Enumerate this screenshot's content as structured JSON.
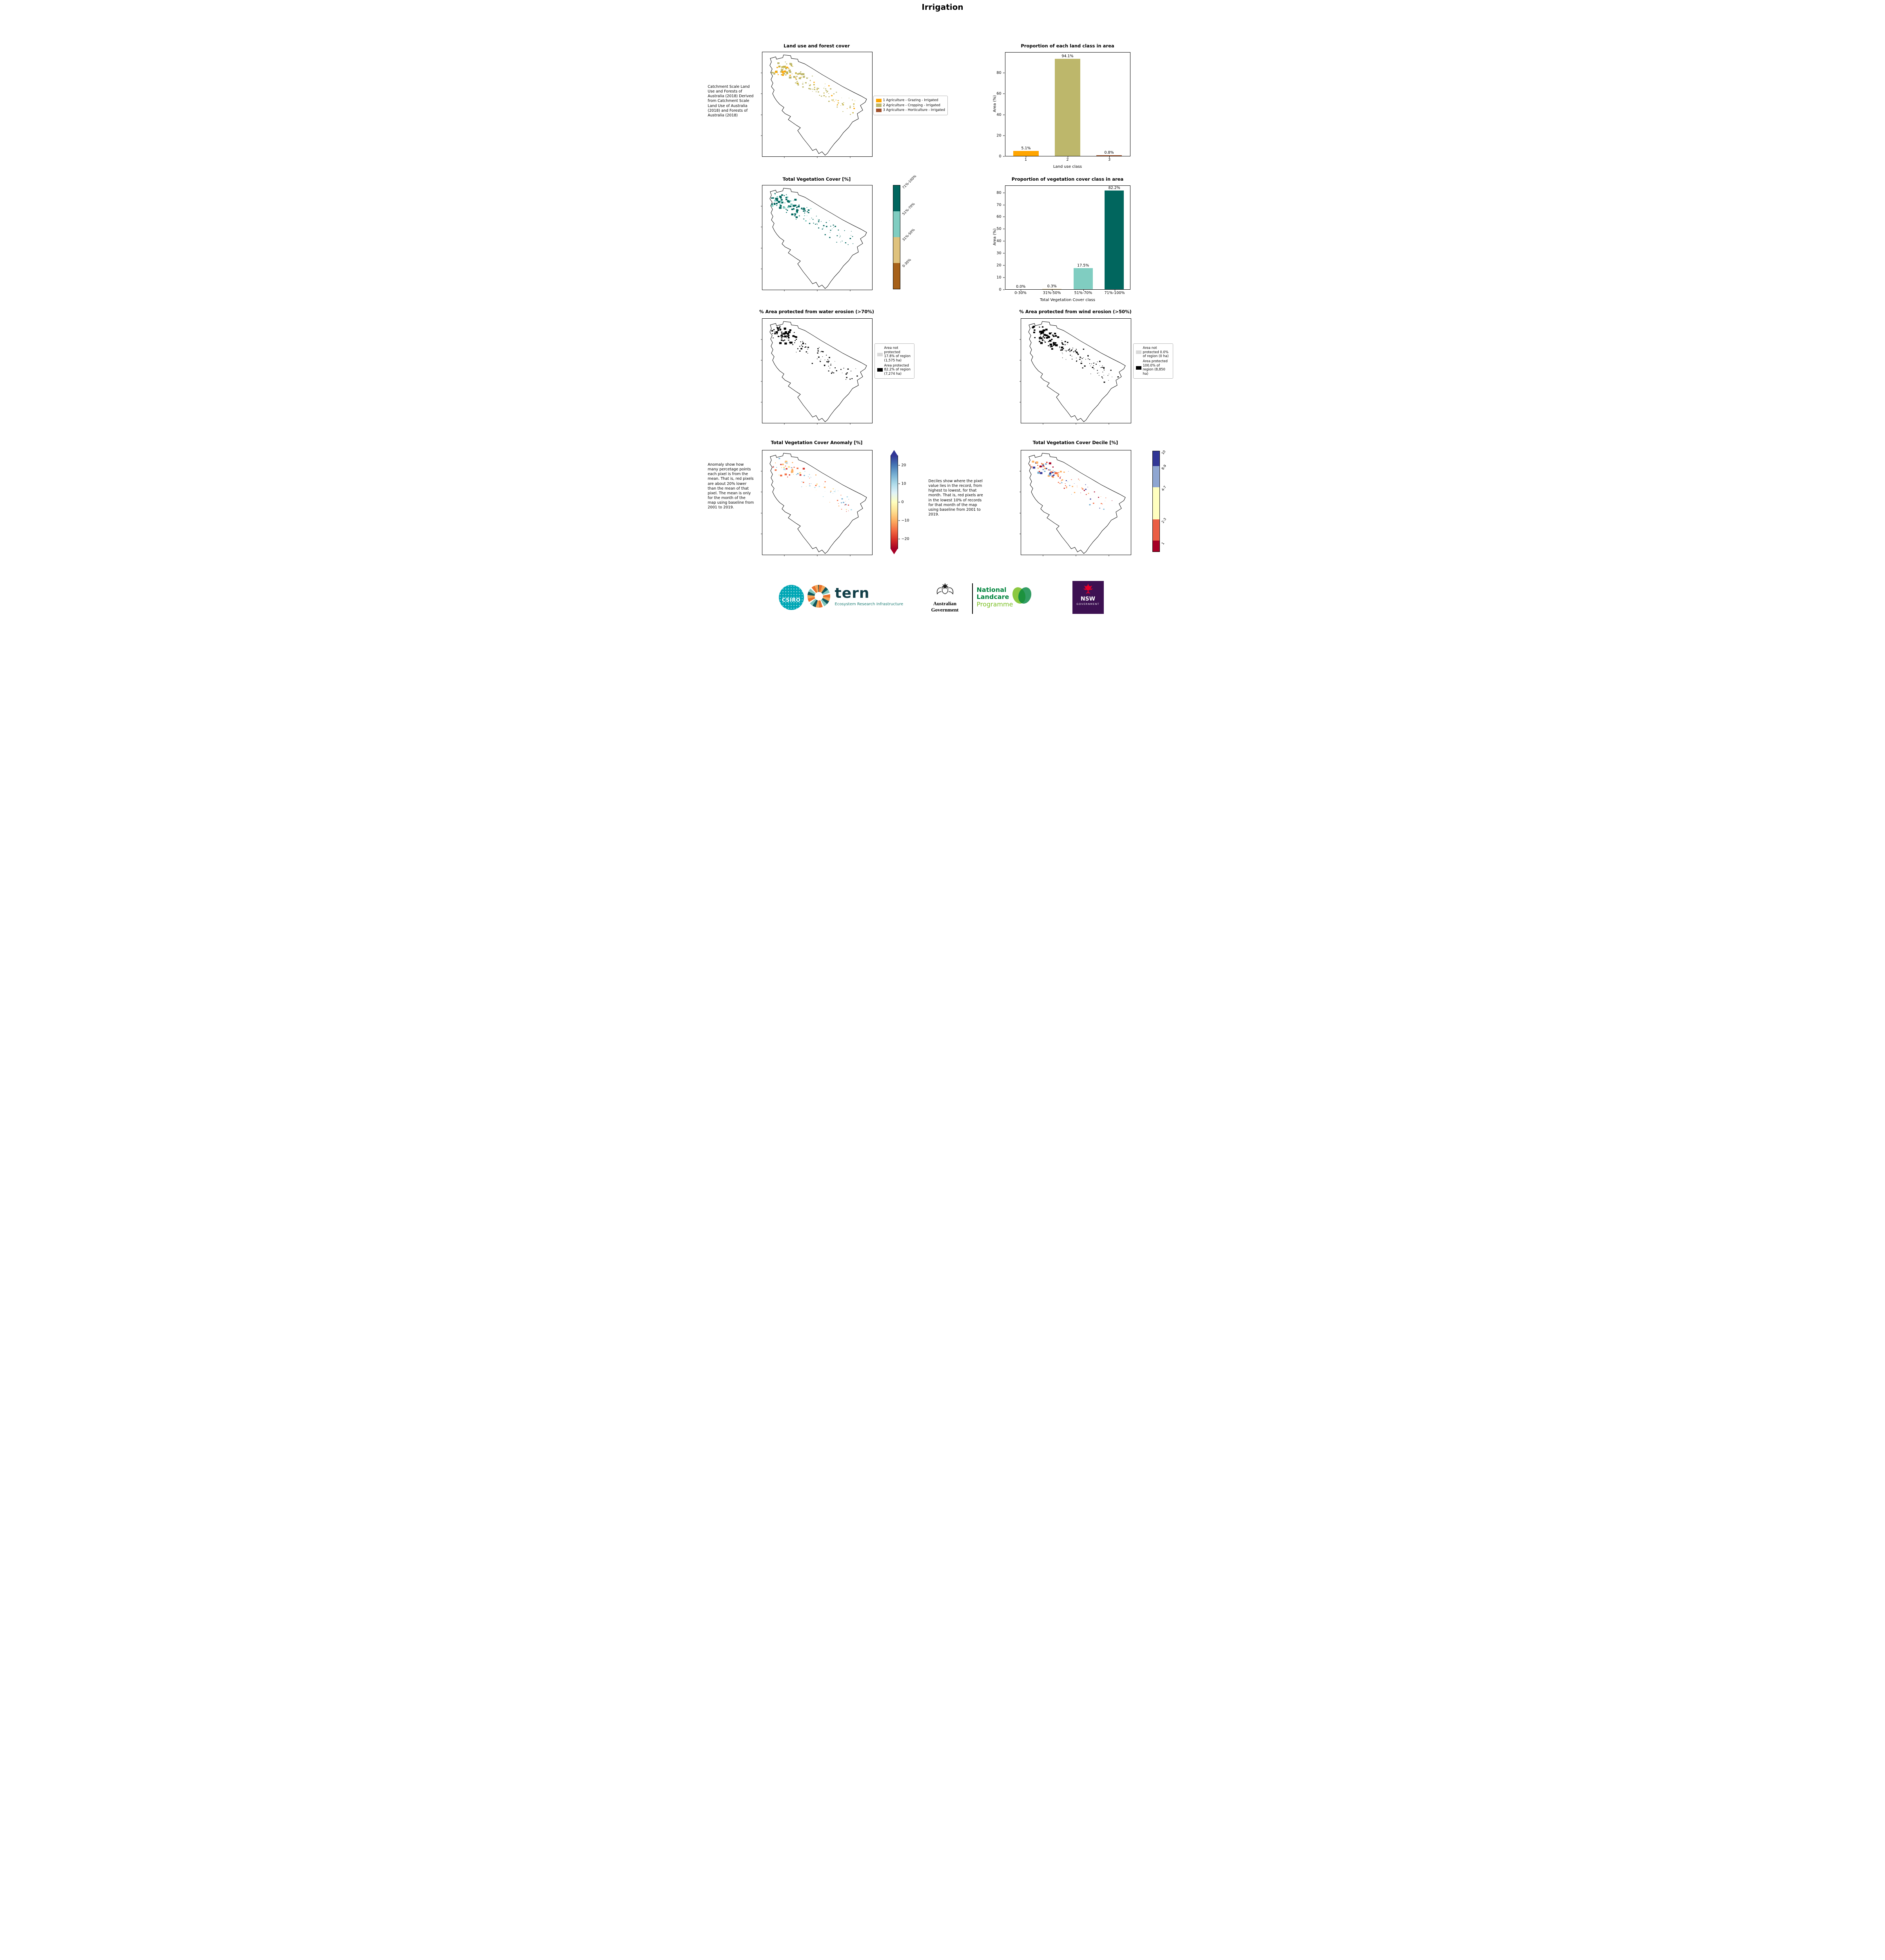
{
  "page": {
    "title": "Irrigation"
  },
  "land_use": {
    "map_title": "Land use and forest cover",
    "source_note": "Catchment Scale Land Use and Forests of Australia (2018) Derived from Catchment Scale Land Use of Australia (2018) and Forests of Australia (2018)",
    "legend": [
      {
        "label": "1 Agriculture - Grazing - Irrigated",
        "color": "#ffa500"
      },
      {
        "label": "2 Agriculture - Cropping - Irrigated",
        "color": "#bdb76b"
      },
      {
        "label": "3 Agriculture - Horticulture - Irrigated",
        "color": "#a0522d"
      }
    ],
    "speckle_colors": [
      "#bdb76b",
      "#bdb76b",
      "#bdb76b",
      "#bdb76b",
      "#c8b23c",
      "#ffa500"
    ]
  },
  "veg_cover": {
    "map_title": "Total Vegetation Cover [%]",
    "speckle_colors": [
      "#01665e",
      "#01665e",
      "#01665e",
      "#80cdc1"
    ]
  },
  "water_erosion": {
    "map_title": "% Area protected from water erosion (>70%)",
    "legend": [
      {
        "label": "Area not protected 17.8% of region (1,575 ha)",
        "color": "#d9d9d9"
      },
      {
        "label": "Area protected 82.2% of region (7,274 ha)",
        "color": "#000000"
      }
    ],
    "speckle_colors": [
      "#000000"
    ]
  },
  "wind_erosion": {
    "map_title": "% Area protected from wind erosion (>50%)",
    "legend": [
      {
        "label": "Area not protected 0.0% of region (0 ha)",
        "color": "#d9d9d9"
      },
      {
        "label": "Area protected 100.0% of region (8,850 ha)",
        "color": "#000000"
      }
    ],
    "speckle_colors": [
      "#000000"
    ]
  },
  "anomaly": {
    "map_title": "Total Vegetation Cover Anomaly [%]",
    "note": "Anomaly show how many percetage points each pixel is from the mean. That is, red pixels are about 20% lower than the mean of that pixel. The mean is only for the month of the map using baseline from 2001 to 2019.",
    "speckle_colors": [
      "#f46d43",
      "#d73027",
      "#fdae61",
      "#abd9e9",
      "#74add1",
      "#fee090"
    ]
  },
  "decile": {
    "map_title": "Total Vegetation Cover Decile [%]",
    "note": "Deciles show where the pixel value lies in the record, from highest to lowest, for that month. That is, red pixels are in the lowest 10% of records for that month of the map using baseline from 2001 to 2019.",
    "speckle_colors": [
      "#d73027",
      "#a50026",
      "#f46d43",
      "#313695",
      "#74add1",
      "#fdae61"
    ]
  },
  "colorbars": {
    "veg_cover": {
      "segments": [
        {
          "label": "71%-100%",
          "color": "#01665e",
          "height": 25
        },
        {
          "label": "51%-70%",
          "color": "#80cdc1",
          "height": 25
        },
        {
          "label": "31%-50%",
          "color": "#dfc27d",
          "height": 25
        },
        {
          "label": "0-30%",
          "color": "#a6611a",
          "height": 25
        }
      ]
    },
    "anomaly": {
      "range": [
        -25.2,
        25.2
      ],
      "ticks": [
        "20",
        "10",
        "0",
        "−10",
        "−20"
      ],
      "tick_values": [
        20,
        10,
        0,
        -10,
        -20
      ],
      "top_arrow_color": "#313695",
      "bottom_arrow_color": "#a50026"
    },
    "decile": {
      "segments": [
        {
          "label": "10",
          "color": "#313695",
          "height": 15
        },
        {
          "label": "8-9",
          "color": "#8fa6d1",
          "height": 21
        },
        {
          "label": "4-7",
          "color": "#ffffbf",
          "height": 32
        },
        {
          "label": "2-3",
          "color": "#ea5e45",
          "height": 21
        },
        {
          "label": "1",
          "color": "#a50026",
          "height": 11
        }
      ]
    }
  },
  "chart_data": [
    {
      "type": "bar",
      "title": "Proportion of each land class in area",
      "categories": [
        "1",
        "2",
        "3"
      ],
      "values": [
        5.1,
        94.1,
        0.8
      ],
      "value_labels": [
        "5.1%",
        "94.1%",
        "0.8%"
      ],
      "bar_colors": [
        "#ffa500",
        "#bdb76b",
        "#a0522d"
      ],
      "xlabel": "Land use class",
      "ylabel": "Area (%)",
      "ylim": [
        0,
        100
      ],
      "yticks": [
        0,
        20,
        40,
        60,
        80
      ],
      "grid": false,
      "legend_position": "none"
    },
    {
      "type": "bar",
      "title": "Proportion of vegetation cover class in area",
      "categories": [
        "0-30%",
        "31%-50%",
        "51%-70%",
        "71%-100%"
      ],
      "values": [
        0.0,
        0.3,
        17.5,
        82.2
      ],
      "value_labels": [
        "0.0%",
        "0.3%",
        "17.5%",
        "82.2%"
      ],
      "bar_colors": [
        "#a6611a",
        "#dfc27d",
        "#80cdc1",
        "#01665e"
      ],
      "xlabel": "Total Vegetation Cover class",
      "ylabel": "Area (%)",
      "ylim": [
        0,
        86
      ],
      "yticks": [
        0,
        10,
        20,
        30,
        40,
        50,
        60,
        70,
        80
      ],
      "grid": false,
      "legend_position": "none"
    }
  ],
  "footer": {
    "csiro": "CSIRO",
    "tern": "tern",
    "tern_tagline": "Ecosystem Research Infrastructure",
    "aus_gov": "Australian Government",
    "nlp_line1": "National",
    "nlp_line2": "Landcare",
    "nlp_line3": "Programme",
    "nsw_line1": "NSW",
    "nsw_line2": "GOVERNMENT"
  }
}
